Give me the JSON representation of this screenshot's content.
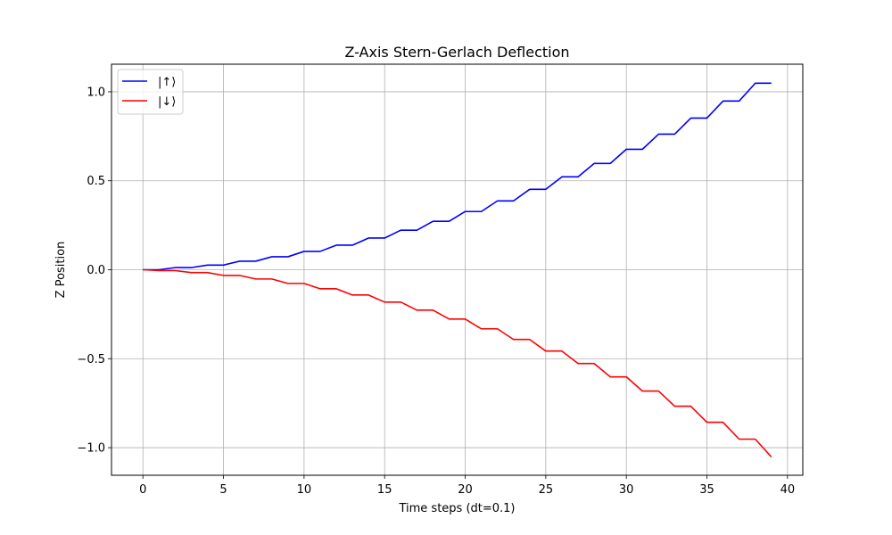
{
  "chart_data": {
    "type": "line",
    "title": "Z-Axis Stern-Gerlach Deflection",
    "xlabel": "Time steps (dt=0.1)",
    "ylabel": "Z Position",
    "xlim": [
      -1.95,
      40.95
    ],
    "ylim": [
      -1.155,
      1.155
    ],
    "xticks": [
      0,
      5,
      10,
      15,
      20,
      25,
      30,
      35,
      40
    ],
    "xtick_labels": [
      "0",
      "5",
      "10",
      "15",
      "20",
      "25",
      "30",
      "35",
      "40"
    ],
    "yticks": [
      -1.0,
      -0.5,
      0.0,
      0.5,
      1.0
    ],
    "ytick_labels": [
      "−1.0",
      "−0.5",
      "0.0",
      "0.5",
      "1.0"
    ],
    "grid": true,
    "legend_position": "upper-left",
    "x": [
      0,
      1,
      2,
      3,
      4,
      5,
      6,
      7,
      8,
      9,
      10,
      11,
      12,
      13,
      14,
      15,
      16,
      17,
      18,
      19,
      20,
      21,
      22,
      23,
      24,
      25,
      26,
      27,
      28,
      29,
      30,
      31,
      32,
      33,
      34,
      35,
      36,
      37,
      38,
      39
    ],
    "series": [
      {
        "name": "|↑⟩",
        "color": "#0000ff",
        "values": [
          0.0,
          0.0,
          0.012,
          0.012,
          0.026,
          0.026,
          0.048,
          0.048,
          0.073,
          0.073,
          0.103,
          0.103,
          0.138,
          0.138,
          0.178,
          0.178,
          0.222,
          0.222,
          0.272,
          0.272,
          0.327,
          0.327,
          0.387,
          0.387,
          0.452,
          0.452,
          0.522,
          0.522,
          0.597,
          0.597,
          0.677,
          0.677,
          0.762,
          0.762,
          0.852,
          0.852,
          0.948,
          0.948,
          1.048,
          1.048
        ]
      },
      {
        "name": "|↓⟩",
        "color": "#ff0000",
        "values": [
          0.0,
          -0.005,
          -0.005,
          -0.016,
          -0.016,
          -0.032,
          -0.032,
          -0.052,
          -0.052,
          -0.077,
          -0.077,
          -0.107,
          -0.107,
          -0.142,
          -0.142,
          -0.182,
          -0.182,
          -0.227,
          -0.227,
          -0.277,
          -0.277,
          -0.332,
          -0.332,
          -0.392,
          -0.392,
          -0.457,
          -0.457,
          -0.527,
          -0.527,
          -0.602,
          -0.602,
          -0.682,
          -0.682,
          -0.767,
          -0.767,
          -0.857,
          -0.857,
          -0.952,
          -0.952,
          -1.052
        ]
      }
    ]
  }
}
